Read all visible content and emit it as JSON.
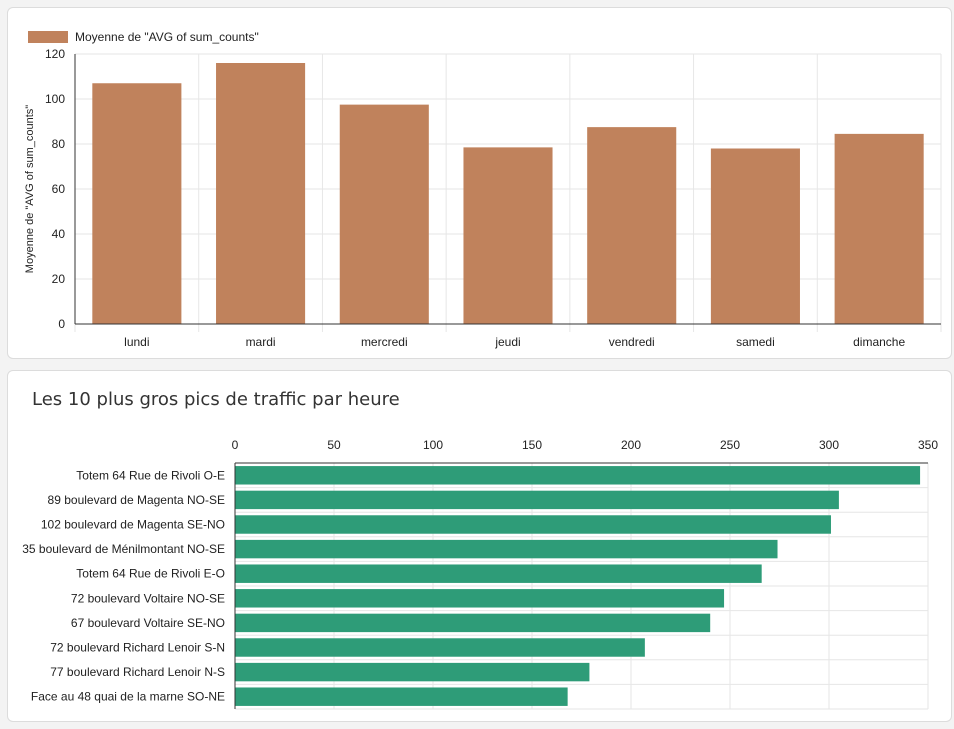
{
  "colors": {
    "bar_chart_fill": "#c0825c",
    "hbar_chart_fill": "#2e9c78",
    "grid": "#e6e6e6",
    "axis": "#333333"
  },
  "chart_data": [
    {
      "type": "bar",
      "title": "",
      "legend": [
        "Moyenne de \"AVG of sum_counts\""
      ],
      "legend_position": "top-left",
      "xlabel": "",
      "ylabel": "Moyenne de \"AVG of sum_counts\"",
      "categories": [
        "lundi",
        "mardi",
        "mercredi",
        "jeudi",
        "vendredi",
        "samedi",
        "dimanche"
      ],
      "values": [
        107,
        116,
        97.5,
        78.5,
        87.5,
        78,
        84.5
      ],
      "ylim": [
        0,
        120
      ],
      "yticks": [
        0,
        20,
        40,
        60,
        80,
        100,
        120
      ],
      "grid": true
    },
    {
      "type": "bar",
      "orientation": "horizontal",
      "title": "Les 10 plus gros pics de traffic par heure",
      "categories": [
        "Totem 64 Rue de Rivoli O-E",
        "89 boulevard de Magenta NO-SE",
        "102 boulevard de Magenta SE-NO",
        "35 boulevard de Ménilmontant NO-SE",
        "Totem 64 Rue de Rivoli E-O",
        "72 boulevard Voltaire NO-SE",
        "67 boulevard Voltaire SE-NO",
        "72 boulevard Richard Lenoir S-N",
        "77 boulevard Richard Lenoir N-S",
        "Face au 48 quai de la marne SO-NE"
      ],
      "values": [
        346,
        305,
        301,
        274,
        266,
        247,
        240,
        207,
        179,
        168
      ],
      "xlim": [
        0,
        350
      ],
      "xticks": [
        0,
        50,
        100,
        150,
        200,
        250,
        300,
        350
      ],
      "grid": true
    }
  ]
}
